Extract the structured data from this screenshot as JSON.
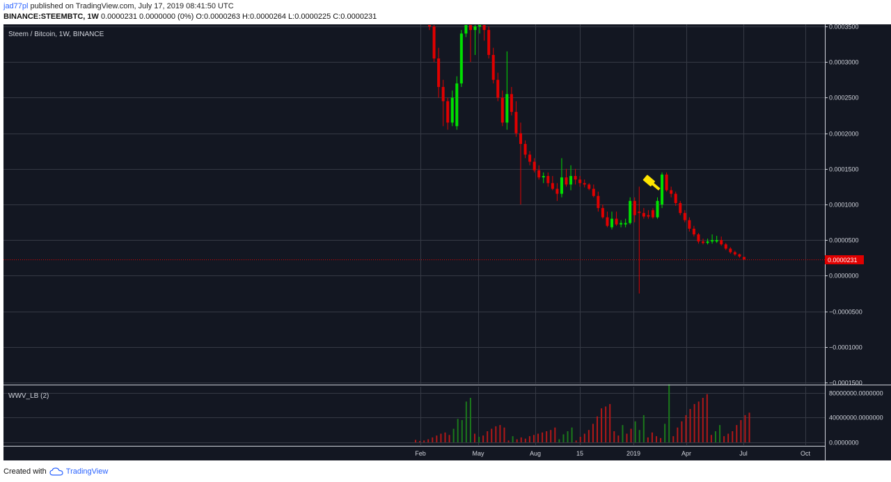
{
  "header": {
    "user": "jad77pl",
    "published_text": " published on TradingView.com, July 17, 2019 08:41:50 UTC",
    "symbol": "BINANCE:STEEMBTC, 1W",
    "ohlc_text": "0.0000231 0.0000000 (0%) O:0.0000263 H:0.0000264 L:0.0000225 C:0.0000231"
  },
  "legend": {
    "main": "Steem / Bitcoin, 1W, BINANCE",
    "indicator": "WWV_LB (2)"
  },
  "price_badge": "0.0000231",
  "footer": {
    "created_with": "Created with",
    "brand": "TradingView"
  },
  "colors": {
    "up": "#00e000",
    "down": "#e00000",
    "vol_up": "#1b7a1b",
    "vol_down": "#b21818",
    "background": "#131722",
    "annotation": "#ffe500"
  },
  "icons": {
    "annotation": "gavel-icon",
    "brand": "tradingview-cloud-icon"
  },
  "chart_data": [
    {
      "type": "candlestick",
      "title": "Steem / Bitcoin, 1W, BINANCE",
      "ylim": [
        -0.00015,
        0.00035
      ],
      "y_ticks": [
        "0.0003500",
        "0.0003000",
        "0.0002500",
        "0.0002000",
        "0.0001500",
        "0.0001000",
        "0.0000500",
        "0.0000000",
        "−0.0000500",
        "−0.0001000",
        "−0.0001500"
      ],
      "y_tick_values": [
        0.00035,
        0.0003,
        0.00025,
        0.0002,
        0.00015,
        0.0001,
        5e-05,
        0,
        -5e-05,
        -0.0001,
        -0.00015
      ],
      "x_ticks": [
        "Feb",
        "May",
        "Aug",
        "15",
        "2019",
        "Apr",
        "Jul",
        "Oct"
      ],
      "last_price": 2.31e-05,
      "candles": [
        {
          "o": 0.000368,
          "h": 0.000372,
          "l": 0.000345,
          "c": 0.00035
        },
        {
          "o": 0.00035,
          "h": 0.000352,
          "l": 0.0003,
          "c": 0.000305
        },
        {
          "o": 0.000305,
          "h": 0.00032,
          "l": 0.00025,
          "c": 0.000265
        },
        {
          "o": 0.000265,
          "h": 0.000275,
          "l": 0.00021,
          "c": 0.000245
        },
        {
          "o": 0.000245,
          "h": 0.00025,
          "l": 0.000205,
          "c": 0.000215
        },
        {
          "o": 0.000215,
          "h": 0.00026,
          "l": 0.00021,
          "c": 0.00025
        },
        {
          "o": 0.00021,
          "h": 0.00028,
          "l": 0.000205,
          "c": 0.00027
        },
        {
          "o": 0.00027,
          "h": 0.000345,
          "l": 0.000265,
          "c": 0.00034
        },
        {
          "o": 0.00034,
          "h": 0.000375,
          "l": 0.000335,
          "c": 0.00036
        },
        {
          "o": 0.00036,
          "h": 0.00037,
          "l": 0.0003,
          "c": 0.000345
        },
        {
          "o": 0.000345,
          "h": 0.00036,
          "l": 0.00031,
          "c": 0.00035
        },
        {
          "o": 0.00035,
          "h": 0.00036,
          "l": 0.00034,
          "c": 0.000355
        },
        {
          "o": 0.000355,
          "h": 0.000365,
          "l": 0.00033,
          "c": 0.000345
        },
        {
          "o": 0.000345,
          "h": 0.00035,
          "l": 0.000305,
          "c": 0.00031
        },
        {
          "o": 0.00031,
          "h": 0.00032,
          "l": 0.00027,
          "c": 0.000275
        },
        {
          "o": 0.000275,
          "h": 0.000285,
          "l": 0.000245,
          "c": 0.00025
        },
        {
          "o": 0.00025,
          "h": 0.00026,
          "l": 0.00021,
          "c": 0.000215
        },
        {
          "o": 0.000215,
          "h": 0.000315,
          "l": 0.000205,
          "c": 0.000255
        },
        {
          "o": 0.000255,
          "h": 0.000265,
          "l": 0.000225,
          "c": 0.00023
        },
        {
          "o": 0.00023,
          "h": 0.000245,
          "l": 0.000195,
          "c": 0.0002
        },
        {
          "o": 0.0002,
          "h": 0.000215,
          "l": 0.0001,
          "c": 0.000185
        },
        {
          "o": 0.000185,
          "h": 0.00019,
          "l": 0.000165,
          "c": 0.00017
        },
        {
          "o": 0.00017,
          "h": 0.000175,
          "l": 0.000155,
          "c": 0.00016
        },
        {
          "o": 0.00016,
          "h": 0.000165,
          "l": 0.000145,
          "c": 0.000148
        },
        {
          "o": 0.000148,
          "h": 0.000155,
          "l": 0.000135,
          "c": 0.000138
        },
        {
          "o": 0.000138,
          "h": 0.000145,
          "l": 0.00013,
          "c": 0.00014
        },
        {
          "o": 0.00014,
          "h": 0.000145,
          "l": 0.000125,
          "c": 0.00013
        },
        {
          "o": 0.00013,
          "h": 0.00014,
          "l": 0.00012,
          "c": 0.000122
        },
        {
          "o": 0.000122,
          "h": 0.00013,
          "l": 0.000105,
          "c": 0.000115
        },
        {
          "o": 0.000115,
          "h": 0.000165,
          "l": 0.00011,
          "c": 0.000138
        },
        {
          "o": 0.000138,
          "h": 0.00015,
          "l": 0.000125,
          "c": 0.000128
        },
        {
          "o": 0.000128,
          "h": 0.000155,
          "l": 0.00012,
          "c": 0.00014
        },
        {
          "o": 0.00014,
          "h": 0.00015,
          "l": 0.000128,
          "c": 0.000135
        },
        {
          "o": 0.000135,
          "h": 0.00014,
          "l": 0.000125,
          "c": 0.00013
        },
        {
          "o": 0.00013,
          "h": 0.000135,
          "l": 0.000124,
          "c": 0.000128
        },
        {
          "o": 0.000128,
          "h": 0.00013,
          "l": 0.00012,
          "c": 0.000122
        },
        {
          "o": 0.000122,
          "h": 0.000128,
          "l": 0.00011,
          "c": 0.000112
        },
        {
          "o": 0.000112,
          "h": 0.000118,
          "l": 9e-05,
          "c": 9.5e-05
        },
        {
          "o": 9.5e-05,
          "h": 0.0001,
          "l": 8e-05,
          "c": 8.2e-05
        },
        {
          "o": 8.2e-05,
          "h": 9e-05,
          "l": 6.8e-05,
          "c": 7e-05
        },
        {
          "o": 6.8e-05,
          "h": 9e-05,
          "l": 6.5e-05,
          "c": 8e-05
        },
        {
          "o": 8e-05,
          "h": 9e-05,
          "l": 7e-05,
          "c": 7.2e-05
        },
        {
          "o": 7.2e-05,
          "h": 7.8e-05,
          "l": 6.8e-05,
          "c": 7.4e-05
        },
        {
          "o": 7.2e-05,
          "h": 8e-05,
          "l": 6.8e-05,
          "c": 7.4e-05
        },
        {
          "o": 7.4e-05,
          "h": 0.00011,
          "l": 7.2e-05,
          "c": 0.000105
        },
        {
          "o": 0.000105,
          "h": 0.00011,
          "l": 7.5e-05,
          "c": 8.5e-05
        },
        {
          "o": 9e-05,
          "h": 0.000125,
          "l": -2.5e-05,
          "c": 8.8e-05
        },
        {
          "o": 8.8e-05,
          "h": 9.5e-05,
          "l": 8e-05,
          "c": 8.3e-05
        },
        {
          "o": 8.5e-05,
          "h": 9.2e-05,
          "l": 8e-05,
          "c": 8.3e-05
        },
        {
          "o": 9.2e-05,
          "h": 9.5e-05,
          "l": 8e-05,
          "c": 8.2e-05
        },
        {
          "o": 8.2e-05,
          "h": 0.00011,
          "l": 8e-05,
          "c": 0.000105
        },
        {
          "o": 0.0001,
          "h": 0.000145,
          "l": 9.5e-05,
          "c": 0.000142
        },
        {
          "o": 0.000142,
          "h": 0.000145,
          "l": 0.000118,
          "c": 0.00012
        },
        {
          "o": 0.00012,
          "h": 0.000125,
          "l": 0.00011,
          "c": 0.000115
        },
        {
          "o": 0.000115,
          "h": 0.000118,
          "l": 9.8e-05,
          "c": 0.000102
        },
        {
          "o": 0.000102,
          "h": 0.000105,
          "l": 8.5e-05,
          "c": 8.8e-05
        },
        {
          "o": 8.8e-05,
          "h": 9.2e-05,
          "l": 7.5e-05,
          "c": 7.8e-05
        },
        {
          "o": 7.8e-05,
          "h": 8.2e-05,
          "l": 6.2e-05,
          "c": 6.6e-05
        },
        {
          "o": 6.6e-05,
          "h": 7e-05,
          "l": 5.5e-05,
          "c": 5.8e-05
        },
        {
          "o": 5.8e-05,
          "h": 6e-05,
          "l": 4.5e-05,
          "c": 4.8e-05
        },
        {
          "o": 4.8e-05,
          "h": 5.2e-05,
          "l": 4.4e-05,
          "c": 4.6e-05
        },
        {
          "o": 4.6e-05,
          "h": 5.2e-05,
          "l": 4.4e-05,
          "c": 4.8e-05
        },
        {
          "o": 4.8e-05,
          "h": 5.8e-05,
          "l": 4.5e-05,
          "c": 5e-05
        },
        {
          "o": 4.8e-05,
          "h": 5.6e-05,
          "l": 4.6e-05,
          "c": 5e-05
        },
        {
          "o": 5e-05,
          "h": 5.5e-05,
          "l": 4.2e-05,
          "c": 4.4e-05
        },
        {
          "o": 4.4e-05,
          "h": 4.6e-05,
          "l": 3.6e-05,
          "c": 3.8e-05
        },
        {
          "o": 3.8e-05,
          "h": 4e-05,
          "l": 3.1e-05,
          "c": 3.3e-05
        },
        {
          "o": 3.3e-05,
          "h": 3.5e-05,
          "l": 2.8e-05,
          "c": 3e-05
        },
        {
          "o": 3e-05,
          "h": 3.1e-05,
          "l": 2.5e-05,
          "c": 2.7e-05
        },
        {
          "o": 2.63e-05,
          "h": 2.64e-05,
          "l": 2.25e-05,
          "c": 2.31e-05
        }
      ]
    },
    {
      "type": "bar",
      "title": "WWV_LB (2)",
      "ylim": [
        0,
        90000000
      ],
      "y_ticks": [
        "80000000.0000000",
        "40000000.0000000",
        "0.0000000"
      ],
      "y_tick_values": [
        80000000,
        40000000,
        0
      ],
      "bars": [
        {
          "v": 4000000,
          "up": false
        },
        {
          "v": 2000000,
          "up": false
        },
        {
          "v": 3000000,
          "up": false
        },
        {
          "v": 5000000,
          "up": false
        },
        {
          "v": 8000000,
          "up": false
        },
        {
          "v": 11000000,
          "up": false
        },
        {
          "v": 14000000,
          "up": false
        },
        {
          "v": 16000000,
          "up": false
        },
        {
          "v": 12000000,
          "up": false
        },
        {
          "v": 22000000,
          "up": true
        },
        {
          "v": 38000000,
          "up": true
        },
        {
          "v": 36000000,
          "up": true
        },
        {
          "v": 66000000,
          "up": true
        },
        {
          "v": 72000000,
          "up": true
        },
        {
          "v": 14000000,
          "up": false
        },
        {
          "v": 9000000,
          "up": true
        },
        {
          "v": 11000000,
          "up": false
        },
        {
          "v": 18000000,
          "up": false
        },
        {
          "v": 22000000,
          "up": false
        },
        {
          "v": 26000000,
          "up": false
        },
        {
          "v": 28000000,
          "up": false
        },
        {
          "v": 24000000,
          "up": false
        },
        {
          "v": 3000000,
          "up": false
        },
        {
          "v": 10000000,
          "up": true
        },
        {
          "v": 5000000,
          "up": false
        },
        {
          "v": 8000000,
          "up": false
        },
        {
          "v": 6000000,
          "up": false
        },
        {
          "v": 10000000,
          "up": false
        },
        {
          "v": 12000000,
          "up": false
        },
        {
          "v": 14000000,
          "up": false
        },
        {
          "v": 16000000,
          "up": false
        },
        {
          "v": 18000000,
          "up": false
        },
        {
          "v": 20000000,
          "up": false
        },
        {
          "v": 24000000,
          "up": false
        },
        {
          "v": 5000000,
          "up": true
        },
        {
          "v": 13000000,
          "up": true
        },
        {
          "v": 18000000,
          "up": true
        },
        {
          "v": 24000000,
          "up": true
        },
        {
          "v": 3000000,
          "up": false
        },
        {
          "v": 9000000,
          "up": false
        },
        {
          "v": 14000000,
          "up": false
        },
        {
          "v": 20000000,
          "up": false
        },
        {
          "v": 30000000,
          "up": false
        },
        {
          "v": 42000000,
          "up": false
        },
        {
          "v": 55000000,
          "up": false
        },
        {
          "v": 58000000,
          "up": false
        },
        {
          "v": 62000000,
          "up": false
        },
        {
          "v": 18000000,
          "up": false
        },
        {
          "v": 11000000,
          "up": false
        },
        {
          "v": 28000000,
          "up": true
        },
        {
          "v": 14000000,
          "up": false
        },
        {
          "v": 22000000,
          "up": false
        },
        {
          "v": 34000000,
          "up": true
        },
        {
          "v": 20000000,
          "up": true
        },
        {
          "v": 44000000,
          "up": true
        },
        {
          "v": 8000000,
          "up": false
        },
        {
          "v": 16000000,
          "up": false
        },
        {
          "v": 10000000,
          "up": false
        },
        {
          "v": 7000000,
          "up": false
        },
        {
          "v": 30000000,
          "up": true
        },
        {
          "v": 94000000,
          "up": true
        },
        {
          "v": 10000000,
          "up": false
        },
        {
          "v": 24000000,
          "up": false
        },
        {
          "v": 34000000,
          "up": false
        },
        {
          "v": 44000000,
          "up": false
        },
        {
          "v": 54000000,
          "up": false
        },
        {
          "v": 62000000,
          "up": false
        },
        {
          "v": 66000000,
          "up": false
        },
        {
          "v": 72000000,
          "up": false
        },
        {
          "v": 78000000,
          "up": false
        },
        {
          "v": 12000000,
          "up": false
        },
        {
          "v": 18000000,
          "up": true
        },
        {
          "v": 28000000,
          "up": true
        },
        {
          "v": 10000000,
          "up": false
        },
        {
          "v": 14000000,
          "up": false
        },
        {
          "v": 18000000,
          "up": false
        },
        {
          "v": 28000000,
          "up": false
        },
        {
          "v": 36000000,
          "up": false
        },
        {
          "v": 44000000,
          "up": false
        },
        {
          "v": 48000000,
          "up": false
        }
      ]
    }
  ]
}
